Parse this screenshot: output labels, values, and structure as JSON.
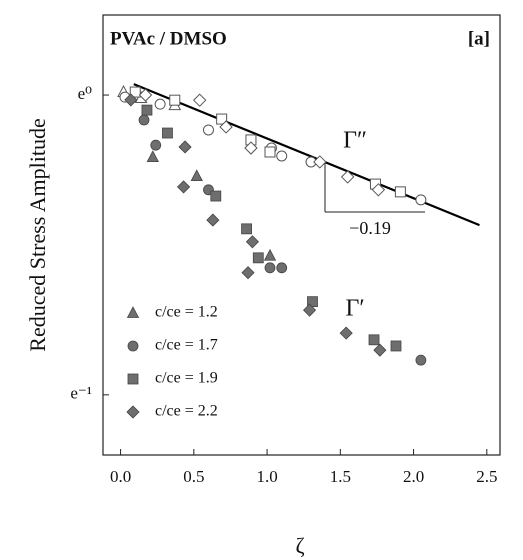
{
  "chart_data": {
    "type": "scatter",
    "title": "PVAc / DMSO",
    "panel_label": "[a]",
    "x_label": "ζ",
    "y_label": "Reduced Stress Amplitude",
    "annotations": [
      "Γ″",
      "Γ′",
      "−0.19"
    ],
    "log_y": true,
    "log_base": "e",
    "xlim": [
      -0.12,
      2.59
    ],
    "ylim": [
      0.301,
      1.306
    ],
    "xticks": [
      {
        "value": 0,
        "label": "0.0"
      },
      0.5,
      {
        "value": 1,
        "label": "1.0"
      },
      1.5,
      {
        "value": 2,
        "label": "2.0"
      },
      2.5
    ],
    "yticks": [
      {
        "value": 1,
        "label": "e⁰"
      },
      {
        "value": 0.3679,
        "label": "e⁻¹"
      }
    ],
    "legend": "lower left",
    "fit": {
      "x": [
        0.09,
        2.45
      ],
      "values": [
        1.037,
        0.648
      ]
    },
    "series": [
      {
        "name": "c/ce = 1.2",
        "marker": "triangle",
        "color": "#6e6e6e",
        "x": [
          0.22,
          0.52,
          1.02
        ],
        "values": [
          0.813,
          0.763,
          0.585
        ],
        "open_x": [
          0.02,
          0.14,
          0.37
        ],
        "open_values": [
          1.01,
          0.99,
          0.967
        ]
      },
      {
        "name": "c/ce = 1.7",
        "marker": "circle",
        "color": "#6e6e6e",
        "x": [
          0.16,
          0.24,
          0.6,
          1.02,
          1.1,
          2.05
        ],
        "values": [
          0.92,
          0.846,
          0.729,
          0.562,
          0.562,
          0.413
        ],
        "open_x": [
          0.03,
          0.27,
          0.6,
          1.03,
          1.1,
          1.3,
          2.05
        ],
        "open_values": [
          0.993,
          0.97,
          0.89,
          0.838,
          0.816,
          0.8,
          0.705
        ]
      },
      {
        "name": "c/ce = 1.9",
        "marker": "square",
        "color": "#6e6e6e",
        "x": [
          0.18,
          0.32,
          0.65,
          0.86,
          0.94,
          1.31,
          1.73,
          1.88
        ],
        "values": [
          0.951,
          0.881,
          0.714,
          0.64,
          0.581,
          0.502,
          0.442,
          0.433
        ],
        "open_x": [
          0.1,
          0.37,
          0.69,
          0.89,
          1.02,
          1.74,
          1.91
        ],
        "open_values": [
          1.01,
          0.983,
          0.923,
          0.861,
          0.827,
          0.743,
          0.724
        ]
      },
      {
        "name": "c/ce = 2.2",
        "marker": "diamond",
        "color": "#6e6e6e",
        "x": [
          0.07,
          0.44,
          0.43,
          0.63,
          0.9,
          0.87,
          1.29,
          1.54,
          1.77
        ],
        "values": [
          0.984,
          0.841,
          0.736,
          0.659,
          0.613,
          0.553,
          0.488,
          0.452,
          0.427
        ],
        "open_x": [
          0.17,
          0.54,
          0.72,
          0.89,
          1.36,
          1.55,
          1.76
        ],
        "open_values": [
          1.0,
          0.983,
          0.899,
          0.838,
          0.8,
          0.761,
          0.729
        ]
      }
    ]
  }
}
